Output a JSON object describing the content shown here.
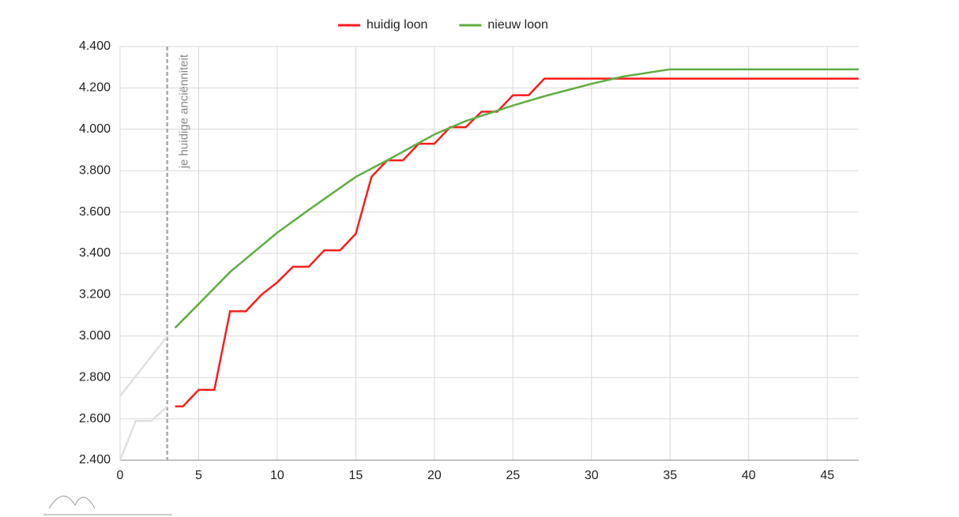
{
  "chart_data": {
    "type": "line",
    "legend": "top",
    "grid": true,
    "xlim": [
      0,
      47
    ],
    "xticks": [
      0,
      5,
      10,
      15,
      20,
      25,
      30,
      35,
      40,
      45
    ],
    "ylim": [
      2400,
      4400
    ],
    "yticks": [
      {
        "value": 2400,
        "label": "2.400"
      },
      {
        "value": 2600,
        "label": "2.600"
      },
      {
        "value": 2800,
        "label": "2.800"
      },
      {
        "value": 3000,
        "label": "3.000"
      },
      {
        "value": 3200,
        "label": "3.200"
      },
      {
        "value": 3400,
        "label": "3.400"
      },
      {
        "value": 3600,
        "label": "3.600"
      },
      {
        "value": 3800,
        "label": "3.800"
      },
      {
        "value": 4000,
        "label": "4.000"
      },
      {
        "value": 4200,
        "label": "4.200"
      },
      {
        "value": 4400,
        "label": "4.400"
      }
    ],
    "annotations": [
      {
        "x": 3,
        "text": "je huidige anciënniteit"
      }
    ],
    "series": [
      {
        "color": "#e0e0e0",
        "x": [
          0,
          1,
          2,
          3
        ],
        "values": [
          2400,
          2590,
          2590,
          2660
        ]
      },
      {
        "color": "#e0e0e0",
        "x": [
          0,
          3
        ],
        "values": [
          2710,
          3000
        ]
      },
      {
        "name": "huidig loon",
        "color": "#ff1a1a",
        "x": [
          3.5,
          4,
          5,
          6,
          7,
          8,
          9,
          10,
          11,
          12,
          13,
          14,
          15,
          16,
          17,
          18,
          19,
          20,
          21,
          22,
          23,
          24,
          25,
          26,
          27,
          47
        ],
        "values": [
          2660,
          2660,
          2740,
          2740,
          3120,
          3120,
          3200,
          3260,
          3335,
          3335,
          3415,
          3415,
          3495,
          3770,
          3850,
          3850,
          3930,
          3930,
          4010,
          4010,
          4085,
          4085,
          4165,
          4165,
          4245,
          4245
        ]
      },
      {
        "name": "nieuw loon",
        "color": "#5fad41",
        "x": [
          3.5,
          5,
          7,
          10,
          12,
          15,
          17,
          20,
          22,
          25,
          27,
          30,
          32,
          35,
          47
        ],
        "values": [
          3040,
          3155,
          3310,
          3500,
          3610,
          3770,
          3850,
          3975,
          4040,
          4115,
          4160,
          4220,
          4255,
          4290,
          4290
        ]
      }
    ]
  }
}
